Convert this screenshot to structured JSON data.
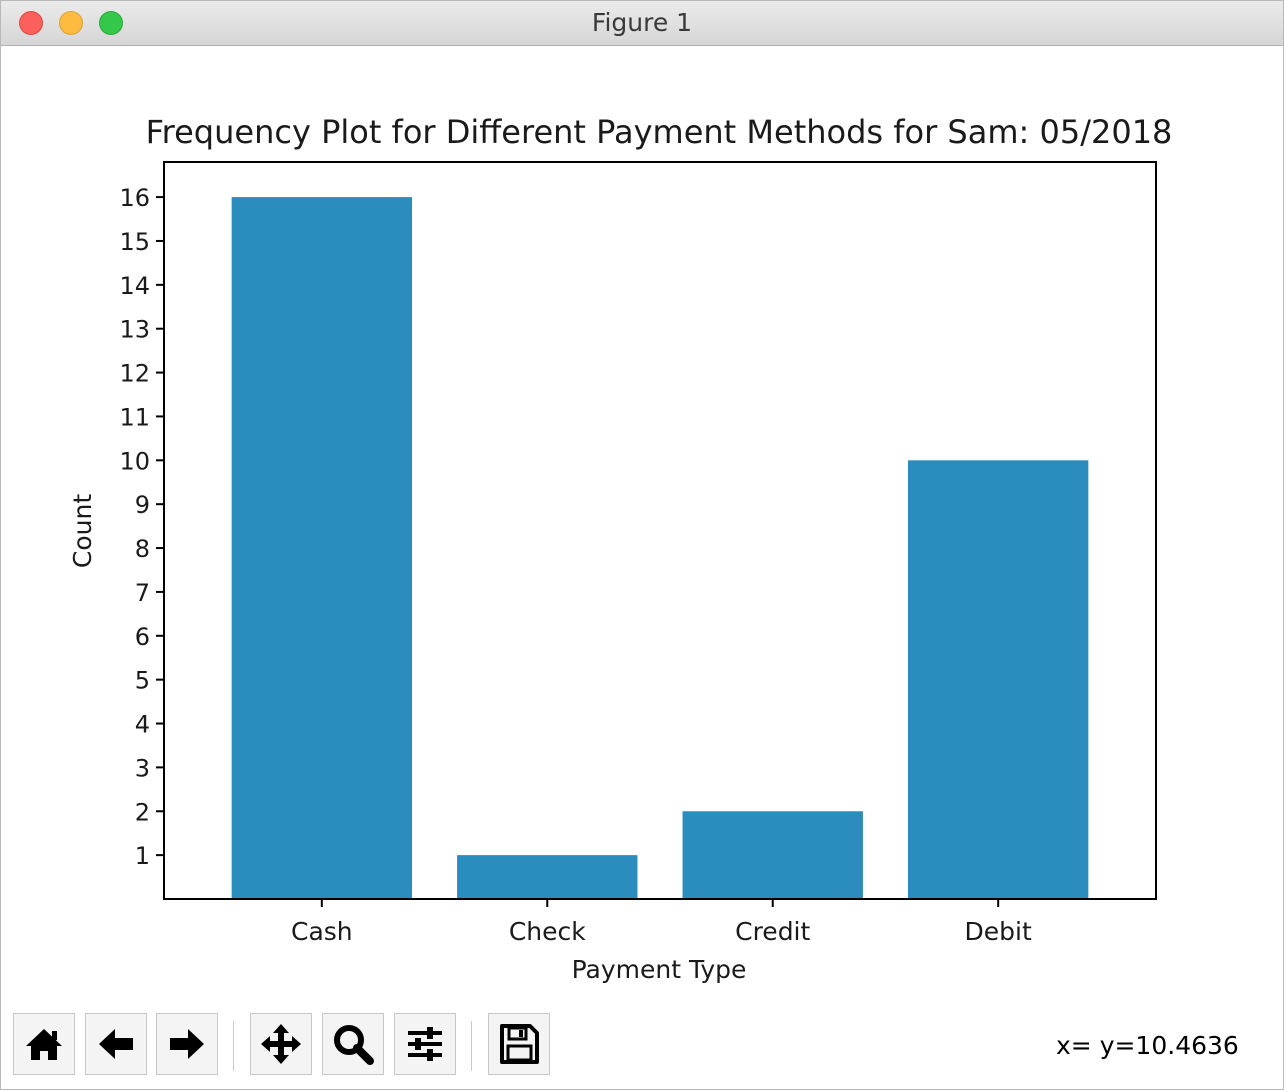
{
  "window": {
    "title": "Figure 1"
  },
  "toolbar": {
    "buttons": [
      {
        "name": "home-button",
        "icon": "home-icon"
      },
      {
        "name": "back-button",
        "icon": "arrow-left-icon"
      },
      {
        "name": "forward-button",
        "icon": "arrow-right-icon"
      },
      {
        "name": "pan-button",
        "icon": "move-icon"
      },
      {
        "name": "zoom-button",
        "icon": "zoom-icon"
      },
      {
        "name": "configure-subplots-button",
        "icon": "sliders-icon"
      },
      {
        "name": "save-button",
        "icon": "save-icon"
      }
    ],
    "coords": "x= y=10.4636"
  },
  "colors": {
    "bar": "#2b8cbe",
    "axis": "#000000"
  },
  "chart_data": {
    "type": "bar",
    "title": "Frequency Plot for Different Payment Methods for Sam: 05/2018",
    "xlabel": "Payment Type",
    "ylabel": "Count",
    "categories": [
      "Cash",
      "Check",
      "Credit",
      "Debit"
    ],
    "values": [
      16,
      1,
      2,
      10
    ],
    "ylim": [
      0,
      16.8
    ],
    "yticks": [
      1,
      2,
      3,
      4,
      5,
      6,
      7,
      8,
      9,
      10,
      11,
      12,
      13,
      14,
      15,
      16
    ],
    "grid": false
  }
}
